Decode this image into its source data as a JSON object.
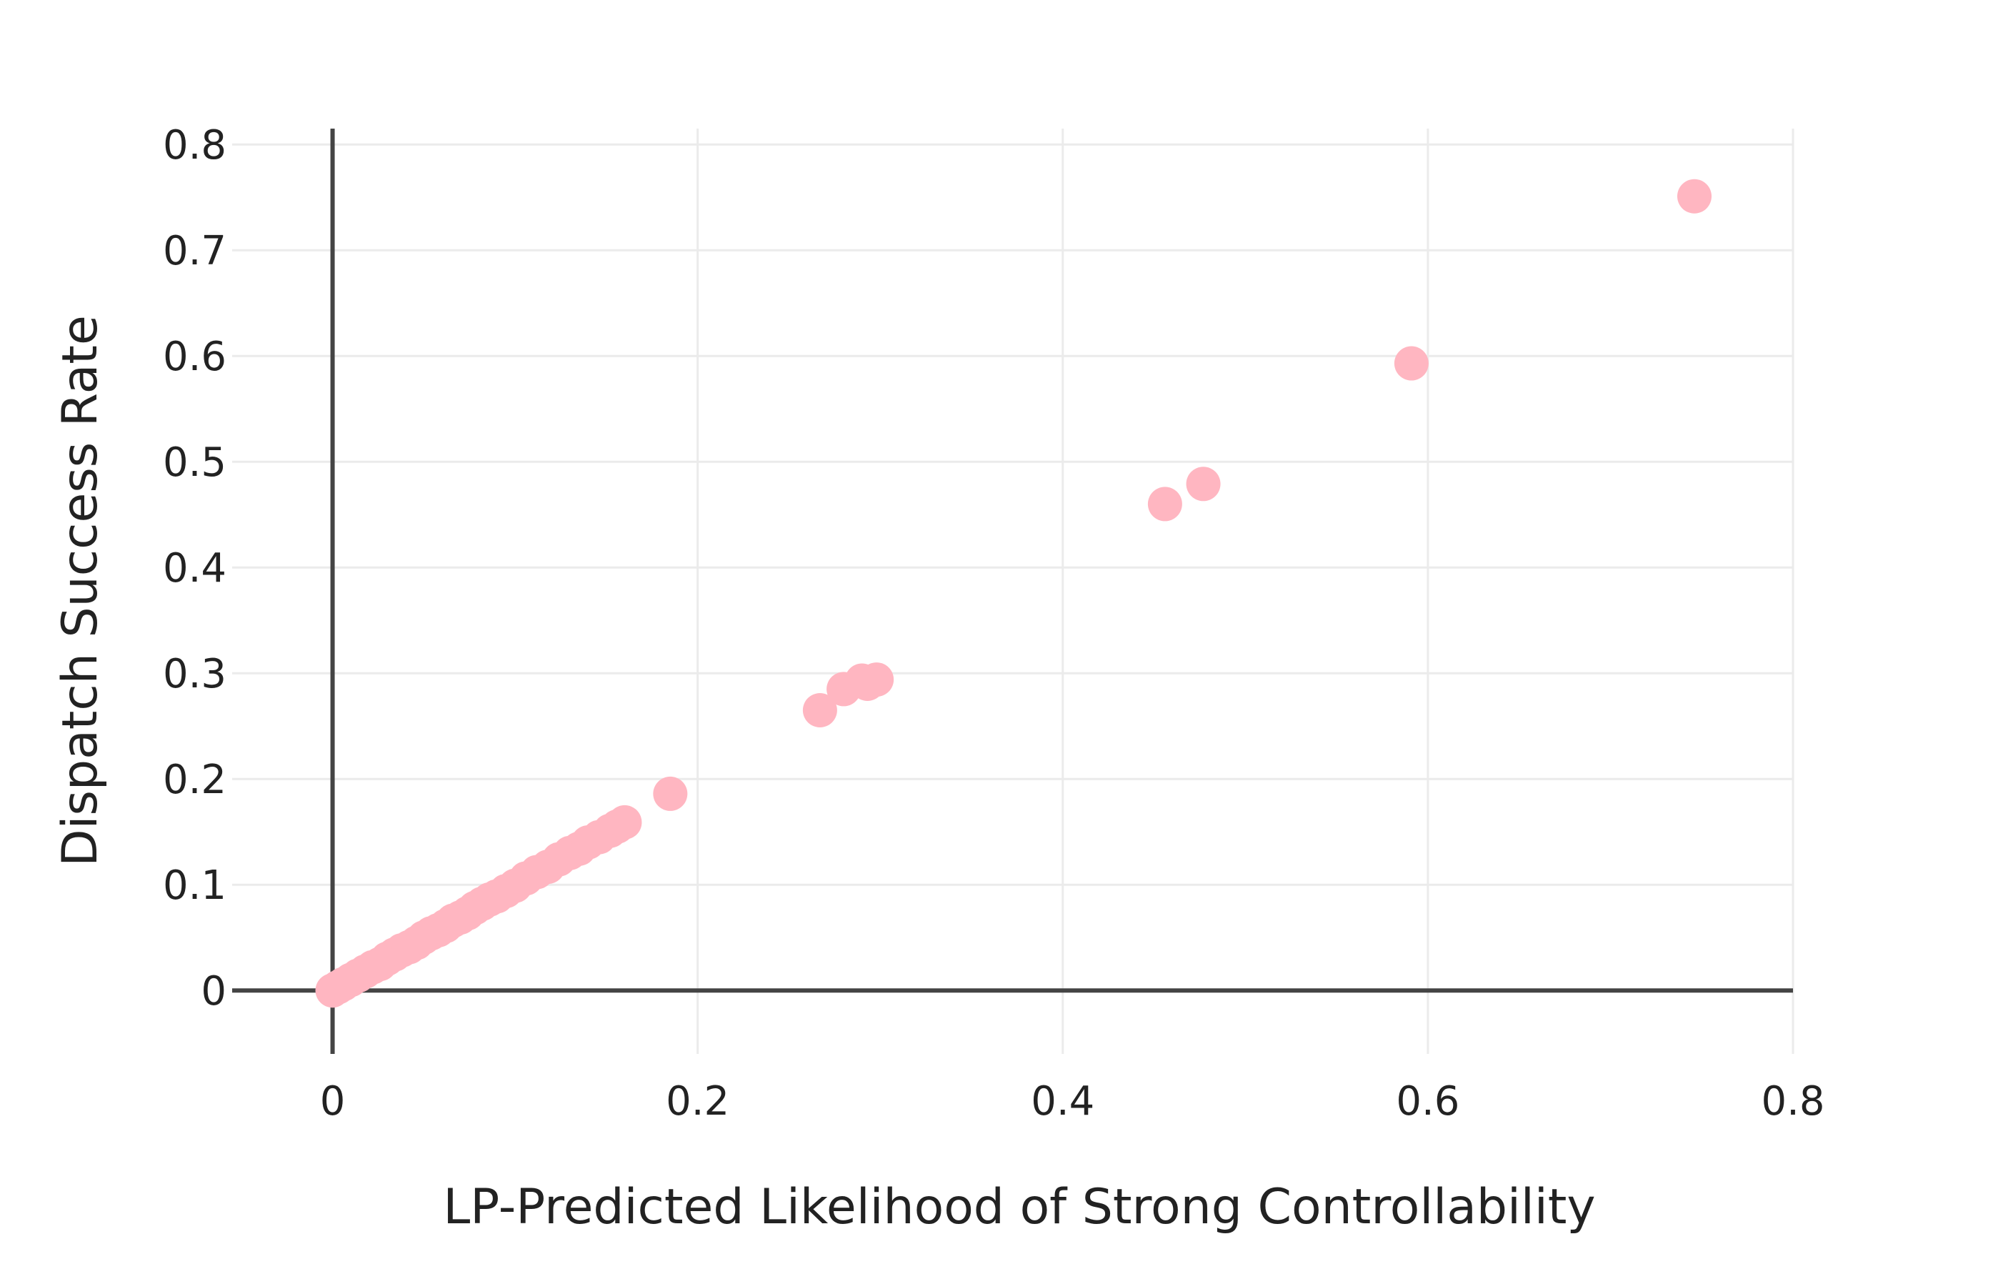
{
  "chart_data": {
    "type": "scatter",
    "title": "",
    "xlabel": "LP-Predicted Likelihood of Strong Controllability",
    "ylabel": "Dispatch Success Rate",
    "xlim": [
      -0.055,
      0.8
    ],
    "ylim": [
      -0.06,
      0.815
    ],
    "x_ticks": [
      0,
      0.2,
      0.4,
      0.6,
      0.8
    ],
    "x_tick_labels": [
      "0",
      "0.2",
      "0.4",
      "0.6",
      "0.8"
    ],
    "y_ticks": [
      0,
      0.1,
      0.2,
      0.3,
      0.4,
      0.5,
      0.6,
      0.7,
      0.8
    ],
    "y_tick_labels": [
      "0",
      "0.1",
      "0.2",
      "0.3",
      "0.4",
      "0.5",
      "0.6",
      "0.7",
      "0.8"
    ],
    "grid": true,
    "legend": "none",
    "marker_color": "#ffb6c1",
    "axis_line_color": "#444444",
    "grid_color": "#ebebeb",
    "series": [
      {
        "values": [
          [
            0.0,
            0.0
          ],
          [
            0.003,
            0.003
          ],
          [
            0.006,
            0.006
          ],
          [
            0.01,
            0.01
          ],
          [
            0.014,
            0.014
          ],
          [
            0.018,
            0.018
          ],
          [
            0.022,
            0.022
          ],
          [
            0.026,
            0.025
          ],
          [
            0.03,
            0.03
          ],
          [
            0.034,
            0.034
          ],
          [
            0.038,
            0.038
          ],
          [
            0.042,
            0.041
          ],
          [
            0.046,
            0.045
          ],
          [
            0.05,
            0.05
          ],
          [
            0.054,
            0.054
          ],
          [
            0.058,
            0.057
          ],
          [
            0.062,
            0.061
          ],
          [
            0.066,
            0.066
          ],
          [
            0.07,
            0.069
          ],
          [
            0.074,
            0.073
          ],
          [
            0.078,
            0.078
          ],
          [
            0.082,
            0.082
          ],
          [
            0.086,
            0.086
          ],
          [
            0.09,
            0.089
          ],
          [
            0.095,
            0.094
          ],
          [
            0.1,
            0.099
          ],
          [
            0.106,
            0.106
          ],
          [
            0.112,
            0.112
          ],
          [
            0.118,
            0.117
          ],
          [
            0.124,
            0.124
          ],
          [
            0.13,
            0.13
          ],
          [
            0.135,
            0.134
          ],
          [
            0.14,
            0.14
          ],
          [
            0.146,
            0.145
          ],
          [
            0.152,
            0.151
          ],
          [
            0.156,
            0.155
          ],
          [
            0.16,
            0.159
          ],
          [
            0.185,
            0.186
          ],
          [
            0.267,
            0.265
          ],
          [
            0.28,
            0.285
          ],
          [
            0.29,
            0.293
          ],
          [
            0.293,
            0.29
          ],
          [
            0.298,
            0.294
          ],
          [
            0.456,
            0.46
          ],
          [
            0.477,
            0.479
          ],
          [
            0.591,
            0.593
          ],
          [
            0.746,
            0.751
          ]
        ]
      }
    ]
  }
}
